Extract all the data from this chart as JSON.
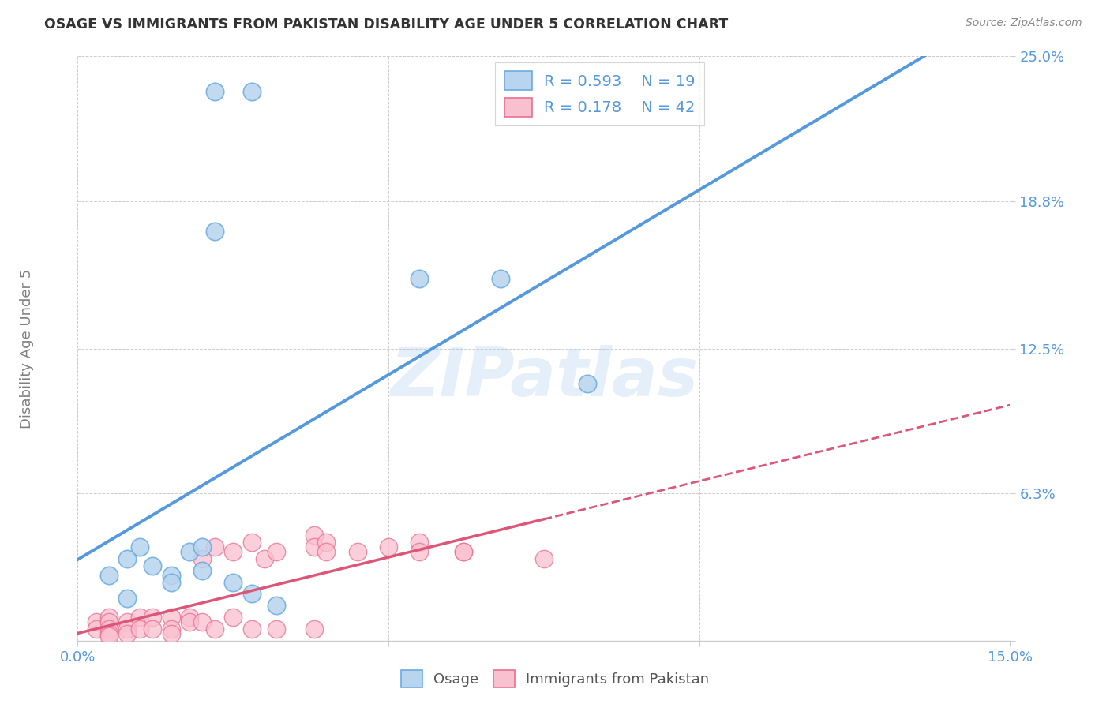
{
  "title": "OSAGE VS IMMIGRANTS FROM PAKISTAN DISABILITY AGE UNDER 5 CORRELATION CHART",
  "source": "Source: ZipAtlas.com",
  "ylabel": "Disability Age Under 5",
  "xlim": [
    0.0,
    0.15
  ],
  "ylim": [
    0.0,
    0.25
  ],
  "yticks": [
    0.0,
    0.063,
    0.125,
    0.188,
    0.25
  ],
  "yticklabels": [
    "",
    "6.3%",
    "12.5%",
    "18.8%",
    "25.0%"
  ],
  "xticks": [
    0.0,
    0.05,
    0.1,
    0.15
  ],
  "xticklabels": [
    "0.0%",
    "",
    "",
    "15.0%"
  ],
  "legend_r1": "R = 0.593",
  "legend_n1": "N = 19",
  "legend_r2": "R = 0.178",
  "legend_n2": "N = 42",
  "color_osage_fill": "#b8d4ee",
  "color_osage_edge": "#6aabdf",
  "color_pakistan_fill": "#f9c0d0",
  "color_pakistan_edge": "#e87090",
  "color_line_osage": "#5599dd",
  "color_line_pakistan": "#dd5577",
  "color_text_blue": "#5599dd",
  "watermark": "ZIPatlas",
  "osage_x": [
    0.022,
    0.028,
    0.022,
    0.055,
    0.068,
    0.082,
    0.008,
    0.012,
    0.015,
    0.018,
    0.02,
    0.025,
    0.028,
    0.032,
    0.01,
    0.005,
    0.008,
    0.015,
    0.02
  ],
  "osage_y": [
    0.235,
    0.235,
    0.175,
    0.155,
    0.155,
    0.11,
    0.035,
    0.032,
    0.028,
    0.038,
    0.03,
    0.025,
    0.02,
    0.015,
    0.04,
    0.028,
    0.018,
    0.025,
    0.04
  ],
  "pakistan_x": [
    0.003,
    0.003,
    0.005,
    0.005,
    0.005,
    0.005,
    0.005,
    0.008,
    0.008,
    0.008,
    0.01,
    0.01,
    0.012,
    0.012,
    0.015,
    0.015,
    0.015,
    0.018,
    0.018,
    0.02,
    0.02,
    0.022,
    0.022,
    0.025,
    0.025,
    0.028,
    0.028,
    0.03,
    0.032,
    0.032,
    0.038,
    0.038,
    0.038,
    0.04,
    0.04,
    0.045,
    0.05,
    0.055,
    0.055,
    0.062,
    0.062,
    0.075
  ],
  "pakistan_y": [
    0.008,
    0.005,
    0.01,
    0.008,
    0.005,
    0.003,
    0.002,
    0.008,
    0.005,
    0.003,
    0.01,
    0.005,
    0.01,
    0.005,
    0.01,
    0.005,
    0.003,
    0.01,
    0.008,
    0.035,
    0.008,
    0.04,
    0.005,
    0.038,
    0.01,
    0.042,
    0.005,
    0.035,
    0.038,
    0.005,
    0.045,
    0.04,
    0.005,
    0.042,
    0.038,
    0.038,
    0.04,
    0.042,
    0.038,
    0.038,
    0.038,
    0.035
  ]
}
